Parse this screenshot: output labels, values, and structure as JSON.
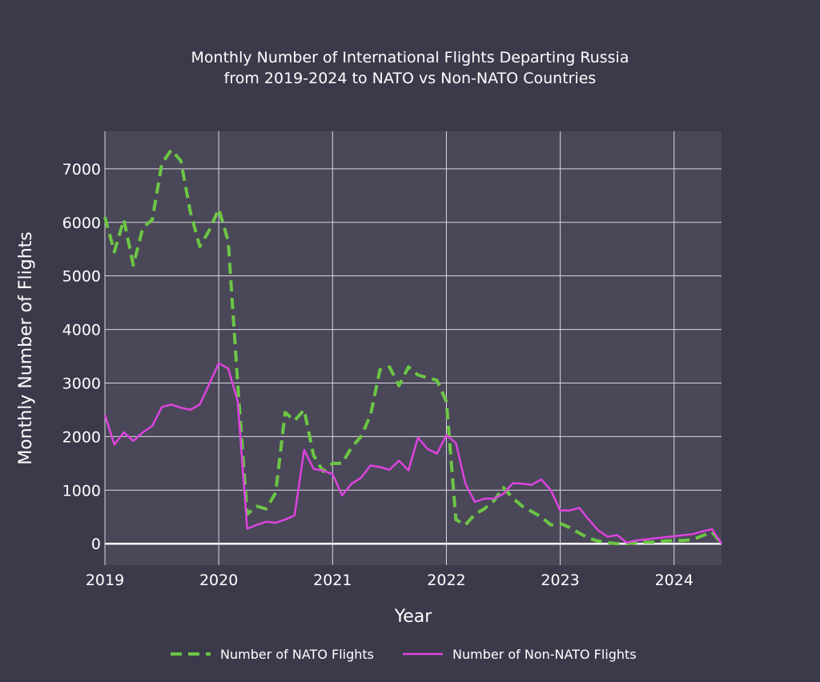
{
  "chart_data": {
    "type": "line",
    "title_lines": [
      "Monthly Number of International Flights Departing Russia",
      "from 2019-2024 to NATO vs Non-NATO Countries"
    ],
    "xlabel": "Year",
    "ylabel": "Monthly Number of Flights",
    "x_ticks": [
      2019,
      2020,
      2021,
      2022,
      2023,
      2024
    ],
    "y_ticks": [
      0,
      1000,
      2000,
      3000,
      4000,
      5000,
      6000,
      7000
    ],
    "xlim": [
      "2019-01",
      "2024-06"
    ],
    "ylim": [
      -400,
      7700
    ],
    "grid": true,
    "legend_position": "bottom",
    "x": [
      "2019-01",
      "2019-02",
      "2019-03",
      "2019-04",
      "2019-05",
      "2019-06",
      "2019-07",
      "2019-08",
      "2019-09",
      "2019-10",
      "2019-11",
      "2019-12",
      "2020-01",
      "2020-02",
      "2020-03",
      "2020-04",
      "2020-05",
      "2020-06",
      "2020-07",
      "2020-08",
      "2020-09",
      "2020-10",
      "2020-11",
      "2020-12",
      "2021-01",
      "2021-02",
      "2021-03",
      "2021-04",
      "2021-05",
      "2021-06",
      "2021-07",
      "2021-08",
      "2021-09",
      "2021-10",
      "2021-11",
      "2021-12",
      "2022-01",
      "2022-02",
      "2022-03",
      "2022-04",
      "2022-05",
      "2022-06",
      "2022-07",
      "2022-08",
      "2022-09",
      "2022-10",
      "2022-11",
      "2022-12",
      "2023-01",
      "2023-02",
      "2023-03",
      "2023-04",
      "2023-05",
      "2023-06",
      "2023-07",
      "2023-08",
      "2023-09",
      "2023-10",
      "2023-11",
      "2023-12",
      "2024-01",
      "2024-02",
      "2024-03",
      "2024-04",
      "2024-05",
      "2024-06"
    ],
    "series": [
      {
        "name": "Number of NATO Flights",
        "color": "#6cc644",
        "dash": "dash",
        "values": [
          6100,
          5450,
          6050,
          5200,
          5900,
          6050,
          7100,
          7350,
          7150,
          6200,
          5550,
          5850,
          6250,
          5650,
          3000,
          550,
          700,
          650,
          950,
          2450,
          2300,
          2500,
          1650,
          1350,
          1500,
          1500,
          1800,
          2000,
          2400,
          3250,
          3300,
          2950,
          3300,
          3150,
          3100,
          3050,
          2650,
          450,
          350,
          550,
          650,
          800,
          1050,
          850,
          700,
          600,
          500,
          350,
          380,
          300,
          200,
          100,
          50,
          20,
          0,
          0,
          20,
          30,
          30,
          50,
          60,
          60,
          80,
          150,
          220,
          0
        ]
      },
      {
        "name": "Number of Non-NATO Flights",
        "color": "#dd44dd",
        "dash": "solid",
        "values": [
          2400,
          1850,
          2080,
          1920,
          2080,
          2200,
          2550,
          2600,
          2540,
          2500,
          2600,
          2980,
          3370,
          3270,
          2660,
          280,
          350,
          410,
          390,
          450,
          530,
          1750,
          1400,
          1360,
          1300,
          900,
          1120,
          1230,
          1460,
          1430,
          1380,
          1550,
          1370,
          1980,
          1770,
          1680,
          2030,
          1880,
          1120,
          780,
          840,
          840,
          930,
          1130,
          1120,
          1100,
          1200,
          1000,
          620,
          620,
          670,
          450,
          250,
          130,
          160,
          20,
          60,
          80,
          100,
          120,
          140,
          160,
          180,
          230,
          270,
          0
        ]
      }
    ]
  }
}
